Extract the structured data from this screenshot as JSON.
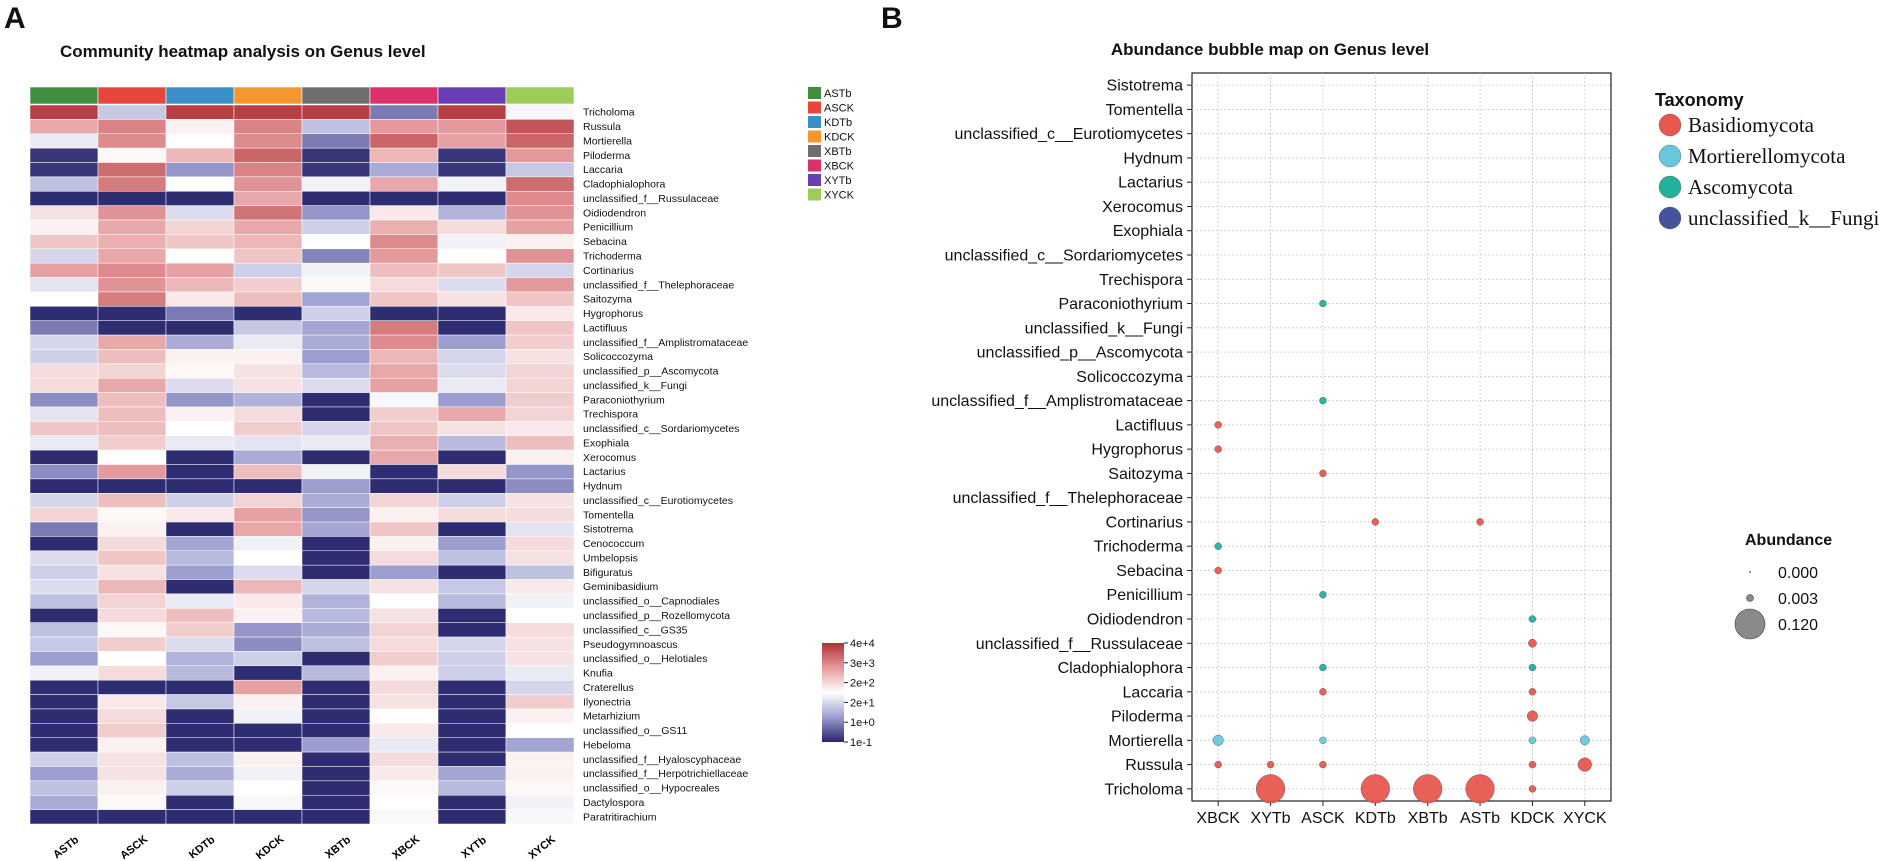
{
  "panel_a": {
    "letter": "A",
    "title": "Community heatmap analysis on Genus level",
    "legend_samples": [
      {
        "label": "ASTb",
        "color": "#3f8f3f"
      },
      {
        "label": "ASCK",
        "color": "#e8453f"
      },
      {
        "label": "KDTb",
        "color": "#3a8fc7"
      },
      {
        "label": "KDCK",
        "color": "#f5962e"
      },
      {
        "label": "XBTb",
        "color": "#6e6e6e"
      },
      {
        "label": "XBCK",
        "color": "#dc2f6b"
      },
      {
        "label": "XYTb",
        "color": "#6a3fb5"
      },
      {
        "label": "XYCK",
        "color": "#9ccd56"
      }
    ],
    "color_scale": {
      "labels": [
        "4e+4",
        "3e+3",
        "2e+2",
        "2e+1",
        "1e+0",
        "1e-1"
      ],
      "colors": [
        "#b03035",
        "#e49a9c",
        "#ffffff",
        "#9c9ed0",
        "#27246b"
      ]
    }
  },
  "panel_b": {
    "letter": "B",
    "title": "Abundance bubble map on Genus level",
    "taxonomy_legend": {
      "title": "Taxonomy",
      "items": [
        {
          "label": "Basidiomycota",
          "color": "#e8574f"
        },
        {
          "label": "Mortierellomycota",
          "color": "#67c8dd"
        },
        {
          "label": "Ascomycota",
          "color": "#23b19d"
        },
        {
          "label": "unclassified_k__Fungi",
          "color": "#45539a"
        }
      ]
    },
    "size_legend": {
      "title": "Abundance",
      "items": [
        "0.000",
        "0.003",
        "0.120"
      ]
    }
  },
  "chart_data": [
    {
      "type": "heatmap",
      "title": "Community heatmap analysis on Genus level",
      "columns": [
        "ASTb",
        "ASCK",
        "KDTb",
        "KDCK",
        "XBTb",
        "XBCK",
        "XYTb",
        "XYCK"
      ],
      "rows": [
        "Tricholoma",
        "Russula",
        "Mortierella",
        "Piloderma",
        "Laccaria",
        "Cladophialophora",
        "unclassified_f__Russulaceae",
        "Oidiodendron",
        "Penicillium",
        "Sebacina",
        "Trichoderma",
        "Cortinarius",
        "unclassified_f__Thelephoraceae",
        "Saitozyma",
        "Hygrophorus",
        "Lactifluus",
        "unclassified_f__Amplistromataceae",
        "Solicoccozyma",
        "unclassified_p__Ascomycota",
        "unclassified_k__Fungi",
        "Paraconiothyrium",
        "Trechispora",
        "unclassified_c__Sordariomycetes",
        "Exophiala",
        "Xerocomus",
        "Lactarius",
        "Hydnum",
        "unclassified_c__Eurotiomycetes",
        "Tomentella",
        "Sistotrema",
        "Cenococcum",
        "Umbelopsis",
        "Bifiguratus",
        "Geminibasidium",
        "unclassified_o__Capnodiales",
        "unclassified_p__Rozellomycota",
        "unclassified_c__GS35",
        "Pseudogymnoascus",
        "unclassified_o__Helotiales",
        "Knufia",
        "Craterellus",
        "Ilyonectria",
        "Metarhizium",
        "unclassified_o__GS11",
        "Hebeloma",
        "unclassified_f__Hyaloscyphaceae",
        "unclassified_f__Herpotrichiellaceae",
        "unclassified_o__Hypocreales",
        "Dactylospora",
        "Paratritirachium"
      ],
      "scale": "log10 abundance, 1e-1 to 4e+4",
      "scale_min": -1,
      "scale_max": 4.6,
      "values": [
        [
          4.4,
          1.0,
          4.4,
          4.4,
          4.4,
          0.0,
          4.4,
          1.7
        ],
        [
          3.0,
          3.5,
          2.0,
          3.5,
          0.9,
          3.2,
          3.2,
          4.1
        ],
        [
          1.5,
          3.4,
          1.8,
          3.4,
          0.0,
          3.9,
          3.1,
          3.9
        ],
        [
          -0.8,
          1.9,
          2.8,
          3.9,
          -0.8,
          2.8,
          -0.8,
          3.2
        ],
        [
          -0.8,
          3.8,
          0.3,
          3.5,
          -0.8,
          0.6,
          -0.8,
          1.0
        ],
        [
          0.9,
          3.6,
          1.8,
          3.3,
          1.6,
          3.0,
          1.6,
          3.8
        ],
        [
          -0.9,
          -0.9,
          -0.9,
          3.0,
          -0.9,
          -0.9,
          -0.9,
          3.4
        ],
        [
          2.2,
          3.3,
          1.3,
          3.7,
          0.3,
          2.1,
          0.7,
          3.3
        ],
        [
          2.0,
          3.0,
          2.4,
          3.0,
          1.1,
          2.9,
          2.3,
          3.1
        ],
        [
          2.6,
          2.9,
          2.6,
          2.8,
          1.8,
          3.4,
          1.6,
          2.0
        ],
        [
          1.2,
          3.0,
          1.8,
          2.6,
          0.1,
          3.2,
          1.8,
          3.3
        ],
        [
          3.1,
          3.4,
          3.1,
          1.1,
          1.6,
          2.7,
          2.6,
          1.2
        ],
        [
          1.4,
          3.3,
          2.8,
          2.5,
          1.9,
          2.3,
          1.3,
          3.2
        ],
        [
          1.8,
          3.6,
          2.1,
          2.7,
          0.5,
          2.6,
          2.2,
          2.6
        ],
        [
          -0.9,
          -0.9,
          0.0,
          -0.9,
          1.1,
          -0.9,
          -0.9,
          2.1
        ],
        [
          0.0,
          -0.9,
          -0.9,
          1.0,
          0.5,
          3.6,
          -0.9,
          2.6
        ],
        [
          1.2,
          3.0,
          0.6,
          1.5,
          0.6,
          3.4,
          0.4,
          2.5
        ],
        [
          1.1,
          2.7,
          2.0,
          2.0,
          0.4,
          2.8,
          1.2,
          2.2
        ],
        [
          2.3,
          2.4,
          1.9,
          2.2,
          0.8,
          3.0,
          1.3,
          2.4
        ],
        [
          2.3,
          3.0,
          1.3,
          2.2,
          1.3,
          3.1,
          1.5,
          2.4
        ],
        [
          0.2,
          2.7,
          0.3,
          0.7,
          -0.9,
          1.7,
          0.4,
          2.5
        ],
        [
          1.4,
          2.7,
          2.0,
          2.3,
          -0.9,
          2.5,
          3.0,
          2.4
        ],
        [
          2.6,
          2.7,
          1.8,
          2.5,
          1.2,
          2.6,
          2.2,
          2.1
        ],
        [
          1.5,
          2.5,
          1.5,
          1.4,
          1.5,
          2.9,
          0.8,
          2.7
        ],
        [
          -0.9,
          1.8,
          -0.9,
          0.6,
          -0.9,
          3.0,
          -0.9,
          2.0
        ],
        [
          0.2,
          3.2,
          -0.9,
          2.7,
          1.6,
          -0.9,
          2.3,
          0.3
        ],
        [
          -0.9,
          -0.9,
          -0.9,
          -0.9,
          0.4,
          -0.9,
          -0.9,
          0.2
        ],
        [
          1.2,
          2.7,
          1.1,
          2.4,
          0.6,
          2.4,
          1.1,
          2.2
        ],
        [
          2.4,
          1.9,
          2.1,
          3.1,
          0.3,
          2.0,
          2.3,
          2.3
        ],
        [
          0.0,
          2.0,
          -0.9,
          3.0,
          0.5,
          2.6,
          -0.9,
          1.4
        ],
        [
          -0.9,
          2.3,
          0.5,
          1.6,
          -0.9,
          2.0,
          0.4,
          2.3
        ],
        [
          1.3,
          2.6,
          0.8,
          1.8,
          -0.9,
          2.3,
          0.9,
          2.2
        ],
        [
          1.1,
          2.2,
          0.4,
          1.3,
          -0.9,
          0.4,
          -0.9,
          0.9
        ],
        [
          1.3,
          2.8,
          -0.9,
          2.8,
          1.2,
          2.2,
          1.0,
          2.1
        ],
        [
          0.9,
          2.4,
          1.5,
          2.1,
          0.7,
          1.8,
          0.8,
          1.6
        ],
        [
          -0.9,
          2.3,
          2.7,
          2.0,
          0.8,
          2.2,
          -0.9,
          1.8
        ],
        [
          0.9,
          1.9,
          2.5,
          0.3,
          0.6,
          2.4,
          -0.9,
          2.3
        ],
        [
          1.0,
          2.5,
          1.3,
          0.2,
          0.9,
          2.3,
          1.2,
          2.2
        ],
        [
          0.4,
          1.8,
          0.7,
          1.1,
          -0.9,
          2.5,
          1.1,
          2.2
        ],
        [
          1.6,
          2.3,
          0.8,
          -0.9,
          0.8,
          2.0,
          1.1,
          1.5
        ],
        [
          -0.9,
          -0.9,
          -0.9,
          3.1,
          -0.9,
          2.3,
          -0.9,
          1.2
        ],
        [
          -0.9,
          2.1,
          1.0,
          2.0,
          -0.9,
          2.2,
          -0.9,
          2.5
        ],
        [
          -0.9,
          2.3,
          -0.9,
          1.6,
          -0.9,
          1.8,
          -0.9,
          2.0
        ],
        [
          -0.9,
          2.5,
          -0.9,
          -0.9,
          -0.9,
          2.1,
          -0.9,
          1.8
        ],
        [
          -0.9,
          2.0,
          -0.9,
          -0.9,
          0.4,
          1.5,
          -0.9,
          0.5
        ],
        [
          1.1,
          2.2,
          0.9,
          2.0,
          -0.9,
          2.3,
          -0.9,
          2.0
        ],
        [
          0.4,
          2.2,
          0.6,
          1.6,
          -0.9,
          2.1,
          0.5,
          2.0
        ],
        [
          0.9,
          2.0,
          1.1,
          1.8,
          -0.9,
          1.9,
          0.8,
          1.9
        ],
        [
          0.6,
          1.9,
          -0.9,
          1.7,
          -0.9,
          1.8,
          -0.9,
          1.6
        ],
        [
          -0.9,
          -0.9,
          -0.9,
          -0.9,
          -0.9,
          1.9,
          -0.9,
          1.7
        ]
      ]
    },
    {
      "type": "scatter",
      "subtype": "bubble",
      "title": "Abundance bubble map on Genus level",
      "x_categories": [
        "XBCK",
        "XYTb",
        "ASCK",
        "KDTb",
        "XBTb",
        "ASTb",
        "KDCK",
        "XYCK"
      ],
      "y_categories": [
        "Sistotrema",
        "Tomentella",
        "unclassified_c__Eurotiomycetes",
        "Hydnum",
        "Lactarius",
        "Xerocomus",
        "Exophiala",
        "unclassified_c__Sordariomycetes",
        "Trechispora",
        "Paraconiothyrium",
        "unclassified_k__Fungi",
        "unclassified_p__Ascomycota",
        "Solicoccozyma",
        "unclassified_f__Amplistromataceae",
        "Lactifluus",
        "Hygrophorus",
        "Saitozyma",
        "unclassified_f__Thelephoraceae",
        "Cortinarius",
        "Trichoderma",
        "Sebacina",
        "Penicillium",
        "Oidiodendron",
        "unclassified_f__Russulaceae",
        "Cladophialophora",
        "Laccaria",
        "Piloderma",
        "Mortierella",
        "Russula",
        "Tricholoma"
      ],
      "points": [
        {
          "x": "ASCK",
          "y": "Paraconiothyrium",
          "abundance": 0.002,
          "taxonomy": "Ascomycota"
        },
        {
          "x": "ASCK",
          "y": "unclassified_f__Amplistromataceae",
          "abundance": 0.002,
          "taxonomy": "Ascomycota"
        },
        {
          "x": "XBCK",
          "y": "Lactifluus",
          "abundance": 0.003,
          "taxonomy": "Basidiomycota"
        },
        {
          "x": "XBCK",
          "y": "Hygrophorus",
          "abundance": 0.003,
          "taxonomy": "Basidiomycota"
        },
        {
          "x": "ASCK",
          "y": "Saitozyma",
          "abundance": 0.003,
          "taxonomy": "Basidiomycota"
        },
        {
          "x": "KDTb",
          "y": "Cortinarius",
          "abundance": 0.003,
          "taxonomy": "Basidiomycota"
        },
        {
          "x": "ASTb",
          "y": "Cortinarius",
          "abundance": 0.003,
          "taxonomy": "Basidiomycota"
        },
        {
          "x": "XBCK",
          "y": "Trichoderma",
          "abundance": 0.003,
          "taxonomy": "Ascomycota"
        },
        {
          "x": "XBCK",
          "y": "Sebacina",
          "abundance": 0.003,
          "taxonomy": "Basidiomycota"
        },
        {
          "x": "ASCK",
          "y": "Penicillium",
          "abundance": 0.003,
          "taxonomy": "Ascomycota"
        },
        {
          "x": "KDCK",
          "y": "Oidiodendron",
          "abundance": 0.003,
          "taxonomy": "Ascomycota"
        },
        {
          "x": "KDCK",
          "y": "unclassified_f__Russulaceae",
          "abundance": 0.009,
          "taxonomy": "Basidiomycota"
        },
        {
          "x": "ASCK",
          "y": "Cladophialophora",
          "abundance": 0.003,
          "taxonomy": "Ascomycota"
        },
        {
          "x": "KDCK",
          "y": "Cladophialophora",
          "abundance": 0.003,
          "taxonomy": "Ascomycota"
        },
        {
          "x": "ASCK",
          "y": "Laccaria",
          "abundance": 0.003,
          "taxonomy": "Basidiomycota"
        },
        {
          "x": "KDCK",
          "y": "Laccaria",
          "abundance": 0.003,
          "taxonomy": "Basidiomycota"
        },
        {
          "x": "KDCK",
          "y": "Piloderma",
          "abundance": 0.015,
          "taxonomy": "Basidiomycota"
        },
        {
          "x": "XBCK",
          "y": "Mortierella",
          "abundance": 0.015,
          "taxonomy": "Mortierellomycota"
        },
        {
          "x": "ASCK",
          "y": "Mortierella",
          "abundance": 0.003,
          "taxonomy": "Mortierellomycota"
        },
        {
          "x": "KDCK",
          "y": "Mortierella",
          "abundance": 0.003,
          "taxonomy": "Mortierellomycota"
        },
        {
          "x": "XYCK",
          "y": "Mortierella",
          "abundance": 0.012,
          "taxonomy": "Mortierellomycota"
        },
        {
          "x": "XBCK",
          "y": "Russula",
          "abundance": 0.003,
          "taxonomy": "Basidiomycota"
        },
        {
          "x": "XYTb",
          "y": "Russula",
          "abundance": 0.003,
          "taxonomy": "Basidiomycota"
        },
        {
          "x": "ASCK",
          "y": "Russula",
          "abundance": 0.003,
          "taxonomy": "Basidiomycota"
        },
        {
          "x": "KDCK",
          "y": "Russula",
          "abundance": 0.003,
          "taxonomy": "Basidiomycota"
        },
        {
          "x": "XYCK",
          "y": "Russula",
          "abundance": 0.025,
          "taxonomy": "Basidiomycota"
        },
        {
          "x": "XYTb",
          "y": "Tricholoma",
          "abundance": 0.11,
          "taxonomy": "Basidiomycota"
        },
        {
          "x": "KDTb",
          "y": "Tricholoma",
          "abundance": 0.11,
          "taxonomy": "Basidiomycota"
        },
        {
          "x": "XBTb",
          "y": "Tricholoma",
          "abundance": 0.11,
          "taxonomy": "Basidiomycota"
        },
        {
          "x": "ASTb",
          "y": "Tricholoma",
          "abundance": 0.11,
          "taxonomy": "Basidiomycota"
        },
        {
          "x": "KDCK",
          "y": "Tricholoma",
          "abundance": 0.003,
          "taxonomy": "Basidiomycota"
        }
      ],
      "size_legend_values": [
        0.0,
        0.003,
        0.12
      ]
    }
  ]
}
